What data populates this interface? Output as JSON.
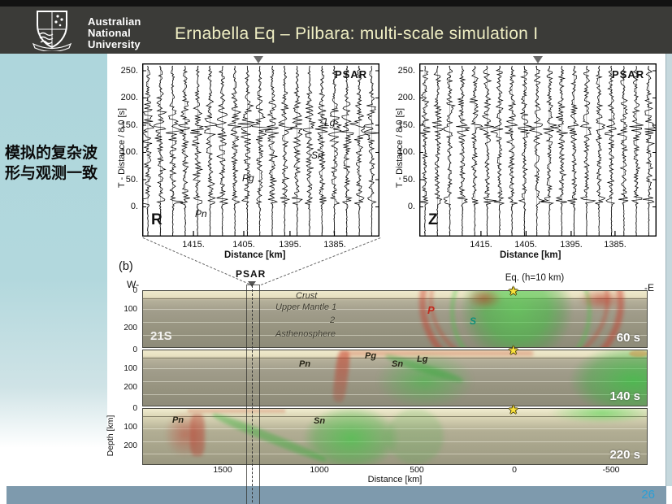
{
  "header": {
    "org": [
      "Australian",
      "National",
      "University"
    ],
    "title": "Ernabella Eq – Pilbara: multi-scale simulation I"
  },
  "sidebar": {
    "caption": [
      "模拟的复杂波",
      "形与观测一致"
    ]
  },
  "footer": {
    "page": "26"
  },
  "record_sections": {
    "station": "PSAR",
    "ylabel": "T - Distance / 8.0 [s]",
    "xlabel": "Distance  [km]",
    "yticks": [
      "250.",
      "200.",
      "150.",
      "100.",
      "50.",
      "0."
    ],
    "xticks": [
      "1415.",
      "1405.",
      "1395.",
      "1385."
    ],
    "panels": [
      {
        "component": "R",
        "phases": [
          "Pn",
          "Pg",
          "Sn",
          "Lg"
        ]
      },
      {
        "component": "Z",
        "phases": []
      }
    ]
  },
  "cross_sections": {
    "panel_label": "(b)",
    "station": "PSAR",
    "west": "W-",
    "east": "-E",
    "eq_label": "Eq. (h=10 km)",
    "latitude_label": "21S",
    "ylabel": "Depth [km]",
    "depth_ticks": [
      "0",
      "100",
      "200"
    ],
    "xticks": [
      "1500",
      "1000",
      "500",
      "0",
      "-500"
    ],
    "xlabel": "Distance [km]",
    "layers": [
      "Crust",
      "Upper Mantle 1",
      "2",
      "Asthenosphere"
    ],
    "snapshots": [
      {
        "time": "60 s",
        "phases": [
          {
            "label": "P",
            "color": "#c22a1e"
          },
          {
            "label": "S",
            "color": "#0e8f7a"
          }
        ]
      },
      {
        "time": "140 s",
        "phases": [
          {
            "label": "Pn"
          },
          {
            "label": "Pg"
          },
          {
            "label": "Sn"
          },
          {
            "label": "Lg"
          }
        ]
      },
      {
        "time": "220 s",
        "phases": [
          {
            "label": "Pn"
          },
          {
            "label": "Sn"
          }
        ]
      }
    ]
  },
  "colors": {
    "title_text": "#efeec3",
    "header_bg": "#3b3b38",
    "sidebar_blue": "#aed6dc",
    "footer_bar": "#7e9aad",
    "page_number": "#2a9fd6",
    "p_wave_red": "#c22a1e",
    "s_wave_green": "#2db044",
    "star_yellow": "#f9e13c"
  }
}
